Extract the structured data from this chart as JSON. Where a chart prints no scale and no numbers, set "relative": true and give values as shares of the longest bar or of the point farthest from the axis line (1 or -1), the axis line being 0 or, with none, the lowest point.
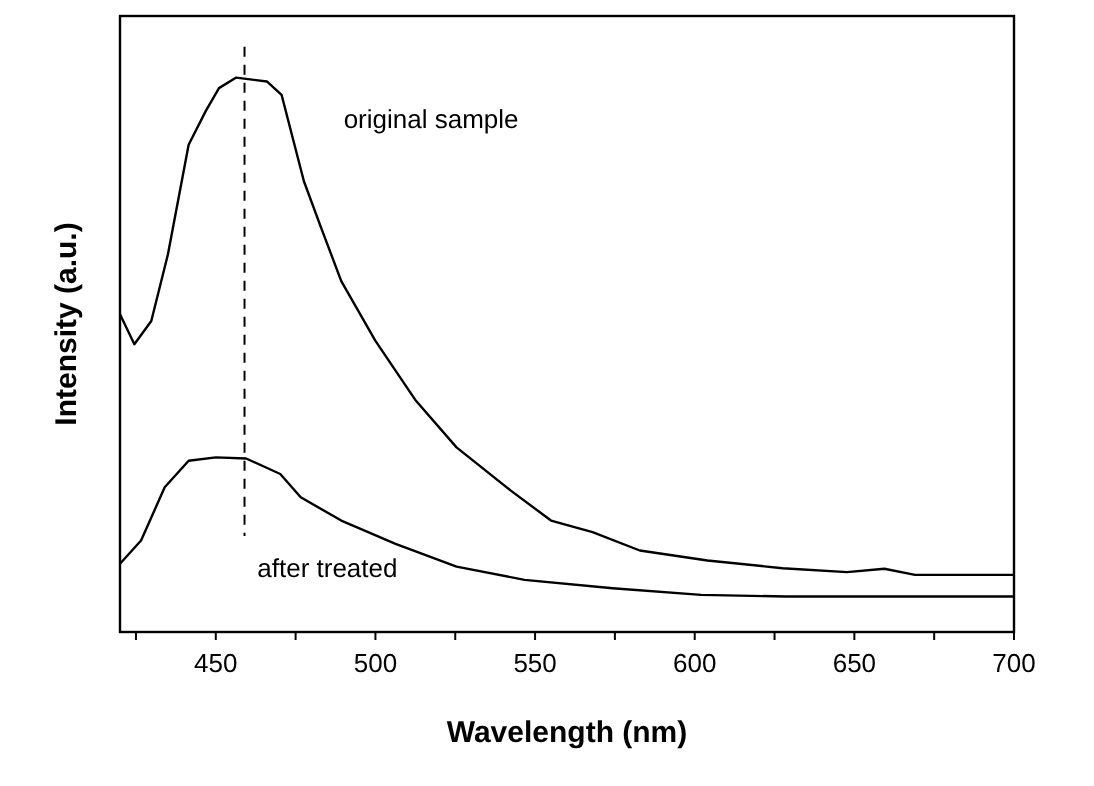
{
  "chart_data": {
    "type": "line",
    "relative": true,
    "xlabel": "Wavelength (nm)",
    "ylabel": "Intensity (a.u.)",
    "xlim": [
      420,
      700
    ],
    "xticks": [
      {
        "value": 425,
        "label": null
      },
      450,
      {
        "value": 475,
        "label": null
      },
      500,
      {
        "value": 525,
        "label": null
      },
      550,
      {
        "value": 575,
        "label": null
      },
      600,
      {
        "value": 625,
        "label": null
      },
      650,
      {
        "value": 675,
        "label": null
      },
      700
    ],
    "grid": false,
    "marker": "none",
    "line_style": "solid",
    "ref_lines": [
      {
        "axis": "x",
        "value": 459,
        "line_style": "dashed",
        "color": "#000000"
      }
    ],
    "annotations": [
      "original sample",
      "after treated"
    ],
    "series": [
      {
        "color": "#000000",
        "x": [
          420,
          424.5,
          429.8,
          435,
          441.5,
          446.8,
          451,
          456.4,
          466,
          470.6,
          477.6,
          483,
          489.3,
          500,
          512.7,
          525.4,
          542.4,
          555,
          568,
          582.8,
          604,
          627.5,
          647.7,
          659.4,
          669,
          700
        ],
        "values": [
          0.573,
          0.519,
          0.561,
          0.681,
          0.879,
          0.939,
          0.981,
          1.0,
          0.993,
          0.969,
          0.813,
          0.729,
          0.633,
          0.525,
          0.417,
          0.333,
          0.255,
          0.201,
          0.18,
          0.147,
          0.129,
          0.115,
          0.108,
          0.114,
          0.103,
          0.103
        ]
      },
      {
        "color": "#000000",
        "x": [
          420,
          426.6,
          434,
          441.5,
          450,
          459.5,
          470.2,
          476.6,
          489.3,
          506.3,
          525.4,
          546.7,
          574.3,
          602,
          628.5,
          700
        ],
        "values": [
          0.123,
          0.165,
          0.261,
          0.309,
          0.315,
          0.313,
          0.285,
          0.243,
          0.201,
          0.159,
          0.118,
          0.094,
          0.079,
          0.067,
          0.064,
          0.064
        ]
      }
    ]
  }
}
